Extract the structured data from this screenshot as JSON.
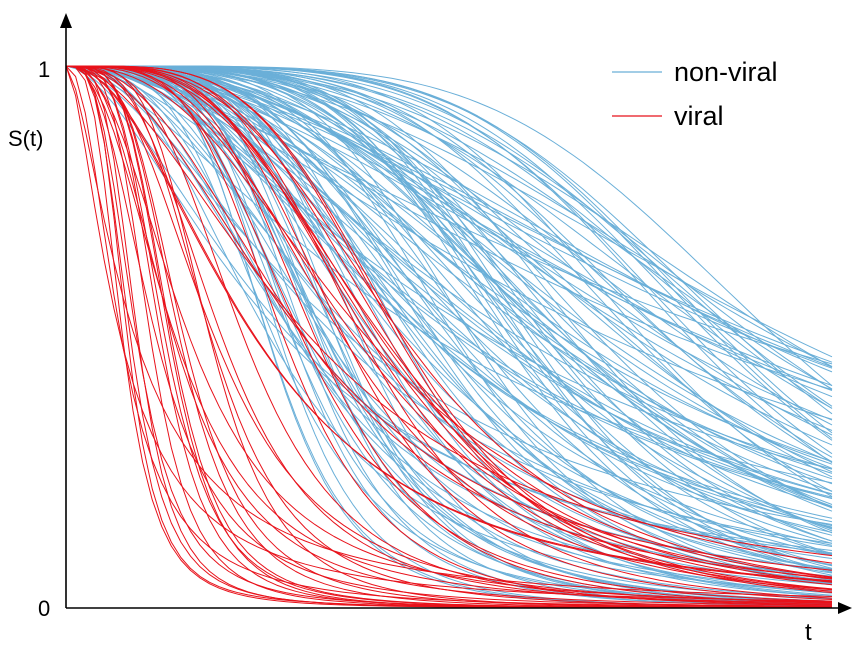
{
  "chart_data": {
    "type": "line",
    "title": "",
    "xlabel": "t",
    "ylabel": "S(t)",
    "yticks": [
      "0",
      "1"
    ],
    "xlim": [
      0,
      1
    ],
    "ylim": [
      0,
      1
    ],
    "grid": false,
    "legend_position": "top-right",
    "colors": {
      "non_viral": "#6aafd8",
      "viral": "#e8121b"
    },
    "series": [
      {
        "name": "non-viral",
        "color": "#6aafd8",
        "count": 130,
        "median_time": 0.55,
        "time_range": [
          0.25,
          0.95
        ]
      },
      {
        "name": "viral",
        "color": "#e8121b",
        "count": 45,
        "median_time": 0.18,
        "time_range": [
          0.07,
          0.45
        ]
      }
    ]
  }
}
